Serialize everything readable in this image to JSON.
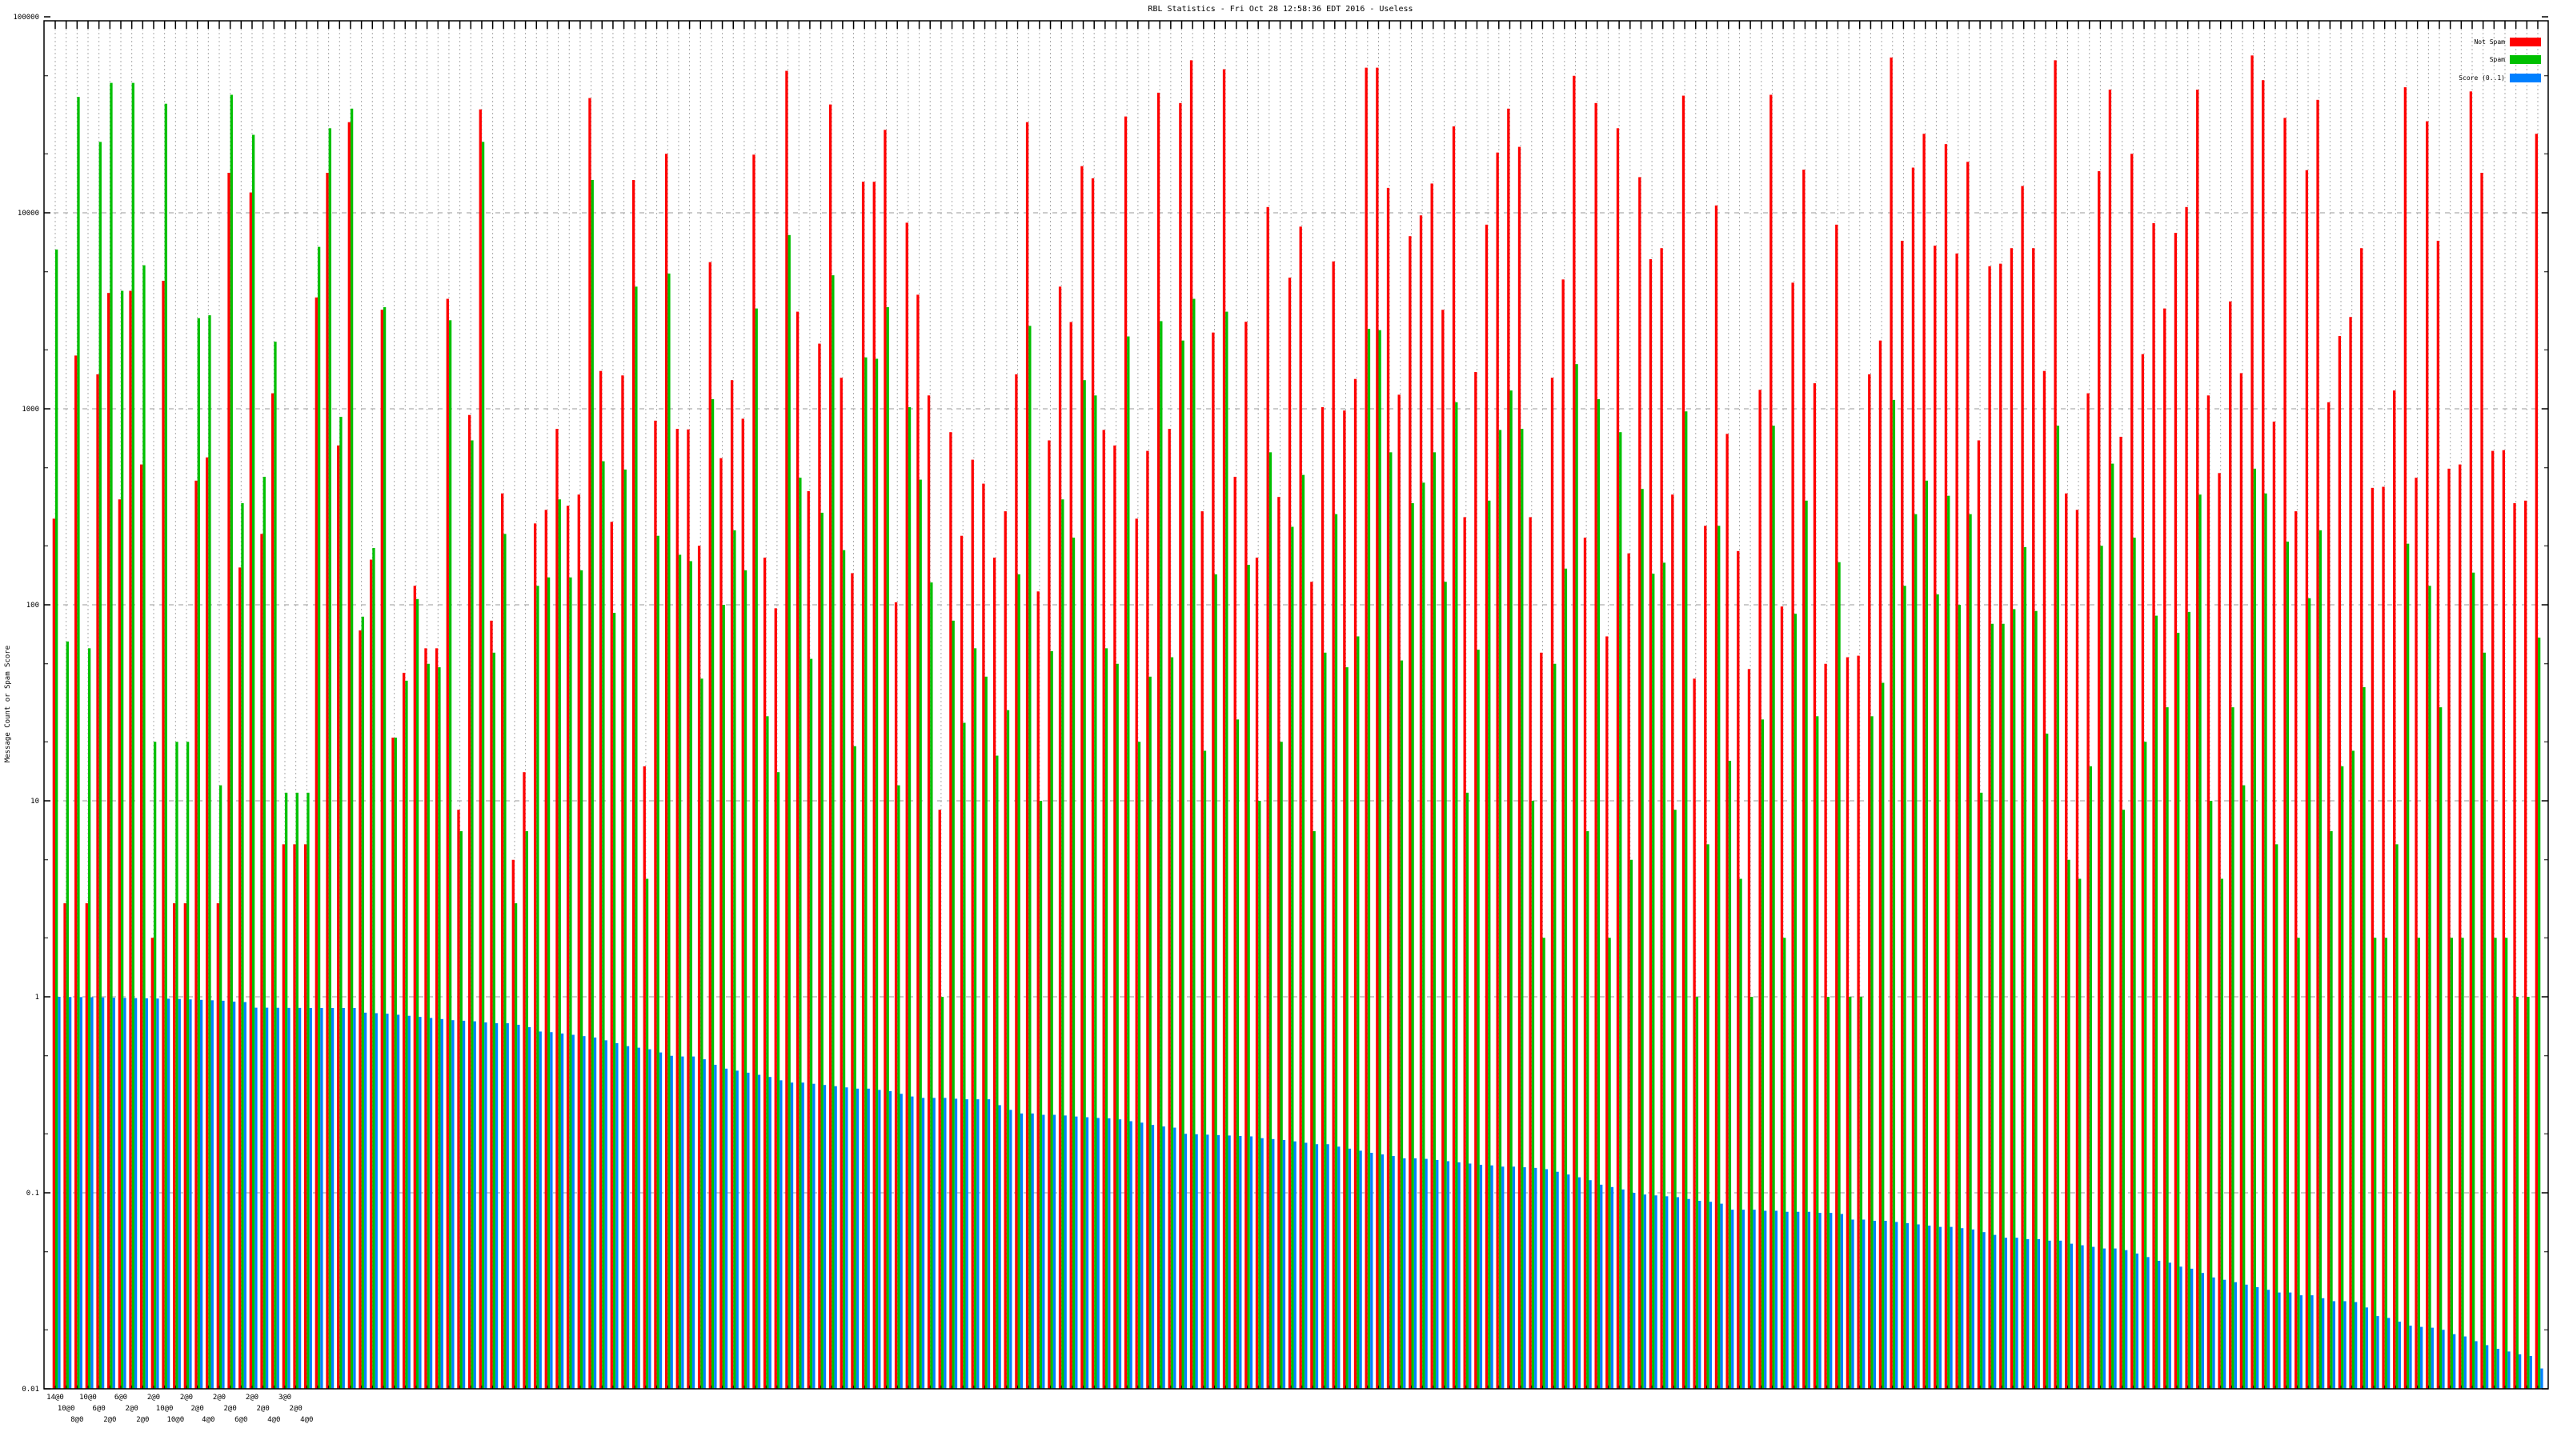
{
  "chart_data": {
    "type": "bar",
    "title": "RBL Statistics - Fri Oct 28 12:58:36 EDT 2016 - Useless",
    "ylabel": "Message Count or Spam Score",
    "xlabel": "",
    "yscale": "log",
    "ylim": [
      0.01,
      100000
    ],
    "yticks": [
      "0.01",
      "0.1",
      "1",
      "10",
      "100",
      "1000",
      "10000",
      "100000"
    ],
    "grid": true,
    "legend_position": "top-right",
    "categories_note_visible": [
      "14@0",
      "10@0",
      "8@0",
      "10@0",
      "6@0",
      "2@0",
      "6@0",
      "2@0",
      "2@0",
      "2@0",
      "10@0",
      "10@0",
      "2@0",
      "2@0",
      "4@0",
      "2@0",
      "2@0",
      "6@0",
      "2@0",
      "2@0",
      "4@0",
      "3@0",
      "2@0",
      "4@0"
    ],
    "series": [
      {
        "name": "Not Spam",
        "color": "#ff0000",
        "values": [
          275,
          3,
          1870,
          3,
          1500,
          3900,
          345,
          4000,
          520,
          2,
          4500,
          3,
          3,
          430,
          565,
          3,
          16000,
          155,
          12700,
          230,
          1200,
          6,
          6,
          6,
          3700,
          16000,
          650,
          29000,
          74,
          170,
          3200,
          21,
          45,
          125,
          60,
          60,
          3640,
          9,
          930,
          33700,
          83,
          370,
          5,
          14,
          260,
          305,
          790,
          320,
          365,
          38500,
          1560,
          265,
          1480,
          14700,
          15,
          870,
          20000,
          790,
          785,
          200,
          5600,
          560,
          1400,
          890,
          19800,
          174,
          96,
          53000,
          3130,
          380,
          2150,
          35700,
          1440,
          145,
          14400,
          14400,
          26500,
          103,
          8900,
          3820,
          1170,
          9,
          760,
          225,
          550,
          415,
          174,
          300,
          1500,
          29000,
          117,
          690,
          4200,
          2770,
          17300,
          15000,
          780,
          650,
          31000,
          275,
          610,
          41000,
          790,
          36300,
          60000,
          300,
          2450,
          54000,
          450,
          2780,
          174,
          10700,
          355,
          4670,
          8500,
          131,
          1020,
          5650,
          980,
          1420,
          55000,
          55000,
          13400,
          1180,
          7600,
          9700,
          14100,
          3200,
          27600,
          280,
          1540,
          8700,
          20300,
          34000,
          21700,
          280,
          57,
          1440,
          4570,
          50000,
          220,
          36300,
          69,
          27000,
          183,
          15200,
          5800,
          6600,
          365,
          39600,
          42,
          253,
          10900,
          745,
          188,
          47,
          1250,
          40000,
          98,
          4400,
          16600,
          1350,
          50,
          8700,
          54,
          55,
          1500,
          2230,
          62000,
          7200,
          17000,
          25300,
          6800,
          22400,
          6200,
          18200,
          690,
          5340,
          5500,
          6600,
          13700,
          6600,
          1560,
          60000,
          370,
          305,
          1200,
          16300,
          42500,
          720,
          20000,
          1900,
          8850,
          3250,
          7900,
          10700,
          42500,
          1170,
          470,
          3530,
          1520,
          63500,
          47500,
          860,
          30500,
          300,
          16500,
          37700,
          1080,
          2350,
          2940,
          6600,
          395,
          400,
          1240,
          43700,
          445,
          29300,
          7200,
          495,
          520,
          41600,
          16000,
          610,
          615,
          330,
          340,
          25300
        ]
      },
      {
        "name": "Spam",
        "color": "#00c000",
        "values": [
          6500,
          65,
          39000,
          60,
          23000,
          46000,
          4000,
          46000,
          5400,
          20,
          36000,
          20,
          20,
          2900,
          3000,
          12,
          40000,
          330,
          25000,
          450,
          2200,
          11,
          11,
          11,
          6700,
          27000,
          910,
          34000,
          87,
          195,
          3300,
          21,
          41,
          107,
          50,
          48,
          2830,
          7,
          690,
          23000,
          57,
          230,
          3,
          7,
          125,
          138,
          345,
          138,
          150,
          14700,
          540,
          91,
          490,
          4200,
          4,
          225,
          4900,
          180,
          167,
          42,
          1120,
          100,
          240,
          150,
          3250,
          27,
          14,
          7700,
          445,
          53,
          295,
          4800,
          190,
          19,
          1830,
          1800,
          3300,
          12,
          1020,
          435,
          130,
          1,
          83,
          25,
          60,
          43,
          17,
          29,
          143,
          2650,
          10,
          58,
          345,
          220,
          1400,
          1170,
          60,
          50,
          2340,
          20,
          43,
          2800,
          54,
          2230,
          3640,
          18,
          143,
          3130,
          26,
          160,
          10,
          600,
          20,
          250,
          460,
          7,
          57,
          290,
          48,
          69,
          2560,
          2520,
          600,
          52,
          330,
          420,
          600,
          131,
          1080,
          11,
          59,
          340,
          780,
          1240,
          790,
          10,
          2,
          50,
          153,
          1690,
          7,
          1120,
          2,
          760,
          5,
          390,
          144,
          164,
          9,
          970,
          1,
          6,
          253,
          16,
          4,
          1,
          26,
          820,
          2,
          90,
          340,
          27,
          1,
          165,
          1,
          1,
          27,
          40,
          1110,
          125,
          290,
          430,
          113,
          360,
          100,
          290,
          11,
          80,
          80,
          95,
          197,
          93,
          22,
          820,
          5,
          4,
          15,
          200,
          525,
          9,
          220,
          20,
          88,
          30,
          72,
          92,
          365,
          10,
          4,
          30,
          12,
          495,
          370,
          6,
          210,
          2,
          108,
          240,
          7,
          15,
          18,
          38,
          2,
          2,
          6,
          205,
          2,
          125,
          30,
          2,
          2,
          146,
          57,
          2,
          2,
          1,
          1,
          68
        ]
      },
      {
        "name": "Score (0..1)",
        "color": "#0080ff",
        "values": [
          1.0,
          0.998,
          0.997,
          0.995,
          0.993,
          0.99,
          0.988,
          0.985,
          0.983,
          0.98,
          0.978,
          0.975,
          0.97,
          0.965,
          0.96,
          0.955,
          0.945,
          0.94,
          0.88,
          0.88,
          0.879,
          0.878,
          0.878,
          0.877,
          0.877,
          0.877,
          0.877,
          0.877,
          0.83,
          0.825,
          0.82,
          0.81,
          0.8,
          0.79,
          0.78,
          0.77,
          0.76,
          0.755,
          0.75,
          0.74,
          0.733,
          0.733,
          0.72,
          0.7,
          0.665,
          0.66,
          0.65,
          0.64,
          0.63,
          0.62,
          0.6,
          0.58,
          0.56,
          0.55,
          0.54,
          0.52,
          0.5,
          0.496,
          0.496,
          0.48,
          0.45,
          0.43,
          0.42,
          0.41,
          0.4,
          0.39,
          0.375,
          0.365,
          0.365,
          0.36,
          0.355,
          0.35,
          0.345,
          0.34,
          0.34,
          0.335,
          0.33,
          0.32,
          0.31,
          0.305,
          0.305,
          0.305,
          0.302,
          0.3,
          0.3,
          0.3,
          0.28,
          0.265,
          0.254,
          0.254,
          0.25,
          0.25,
          0.248,
          0.245,
          0.243,
          0.241,
          0.24,
          0.237,
          0.232,
          0.228,
          0.222,
          0.218,
          0.215,
          0.2,
          0.199,
          0.198,
          0.197,
          0.196,
          0.195,
          0.194,
          0.19,
          0.188,
          0.186,
          0.183,
          0.18,
          0.177,
          0.177,
          0.172,
          0.168,
          0.164,
          0.16,
          0.157,
          0.154,
          0.15,
          0.15,
          0.149,
          0.147,
          0.145,
          0.143,
          0.141,
          0.139,
          0.138,
          0.136,
          0.136,
          0.135,
          0.134,
          0.132,
          0.128,
          0.124,
          0.12,
          0.116,
          0.11,
          0.107,
          0.104,
          0.1,
          0.098,
          0.097,
          0.096,
          0.095,
          0.093,
          0.091,
          0.09,
          0.088,
          0.082,
          0.082,
          0.082,
          0.081,
          0.081,
          0.08,
          0.08,
          0.08,
          0.079,
          0.079,
          0.078,
          0.073,
          0.073,
          0.072,
          0.072,
          0.071,
          0.07,
          0.069,
          0.068,
          0.067,
          0.067,
          0.066,
          0.065,
          0.063,
          0.061,
          0.059,
          0.059,
          0.058,
          0.058,
          0.057,
          0.057,
          0.055,
          0.054,
          0.053,
          0.052,
          0.052,
          0.051,
          0.049,
          0.047,
          0.045,
          0.044,
          0.042,
          0.041,
          0.039,
          0.037,
          0.036,
          0.035,
          0.034,
          0.033,
          0.032,
          0.031,
          0.031,
          0.03,
          0.03,
          0.029,
          0.028,
          0.028,
          0.0277,
          0.026,
          0.0235,
          0.023,
          0.022,
          0.021,
          0.0207,
          0.0205,
          0.02,
          0.019,
          0.0185,
          0.0175,
          0.0167,
          0.016,
          0.0155,
          0.015,
          0.0147,
          0.0127
        ]
      }
    ]
  }
}
